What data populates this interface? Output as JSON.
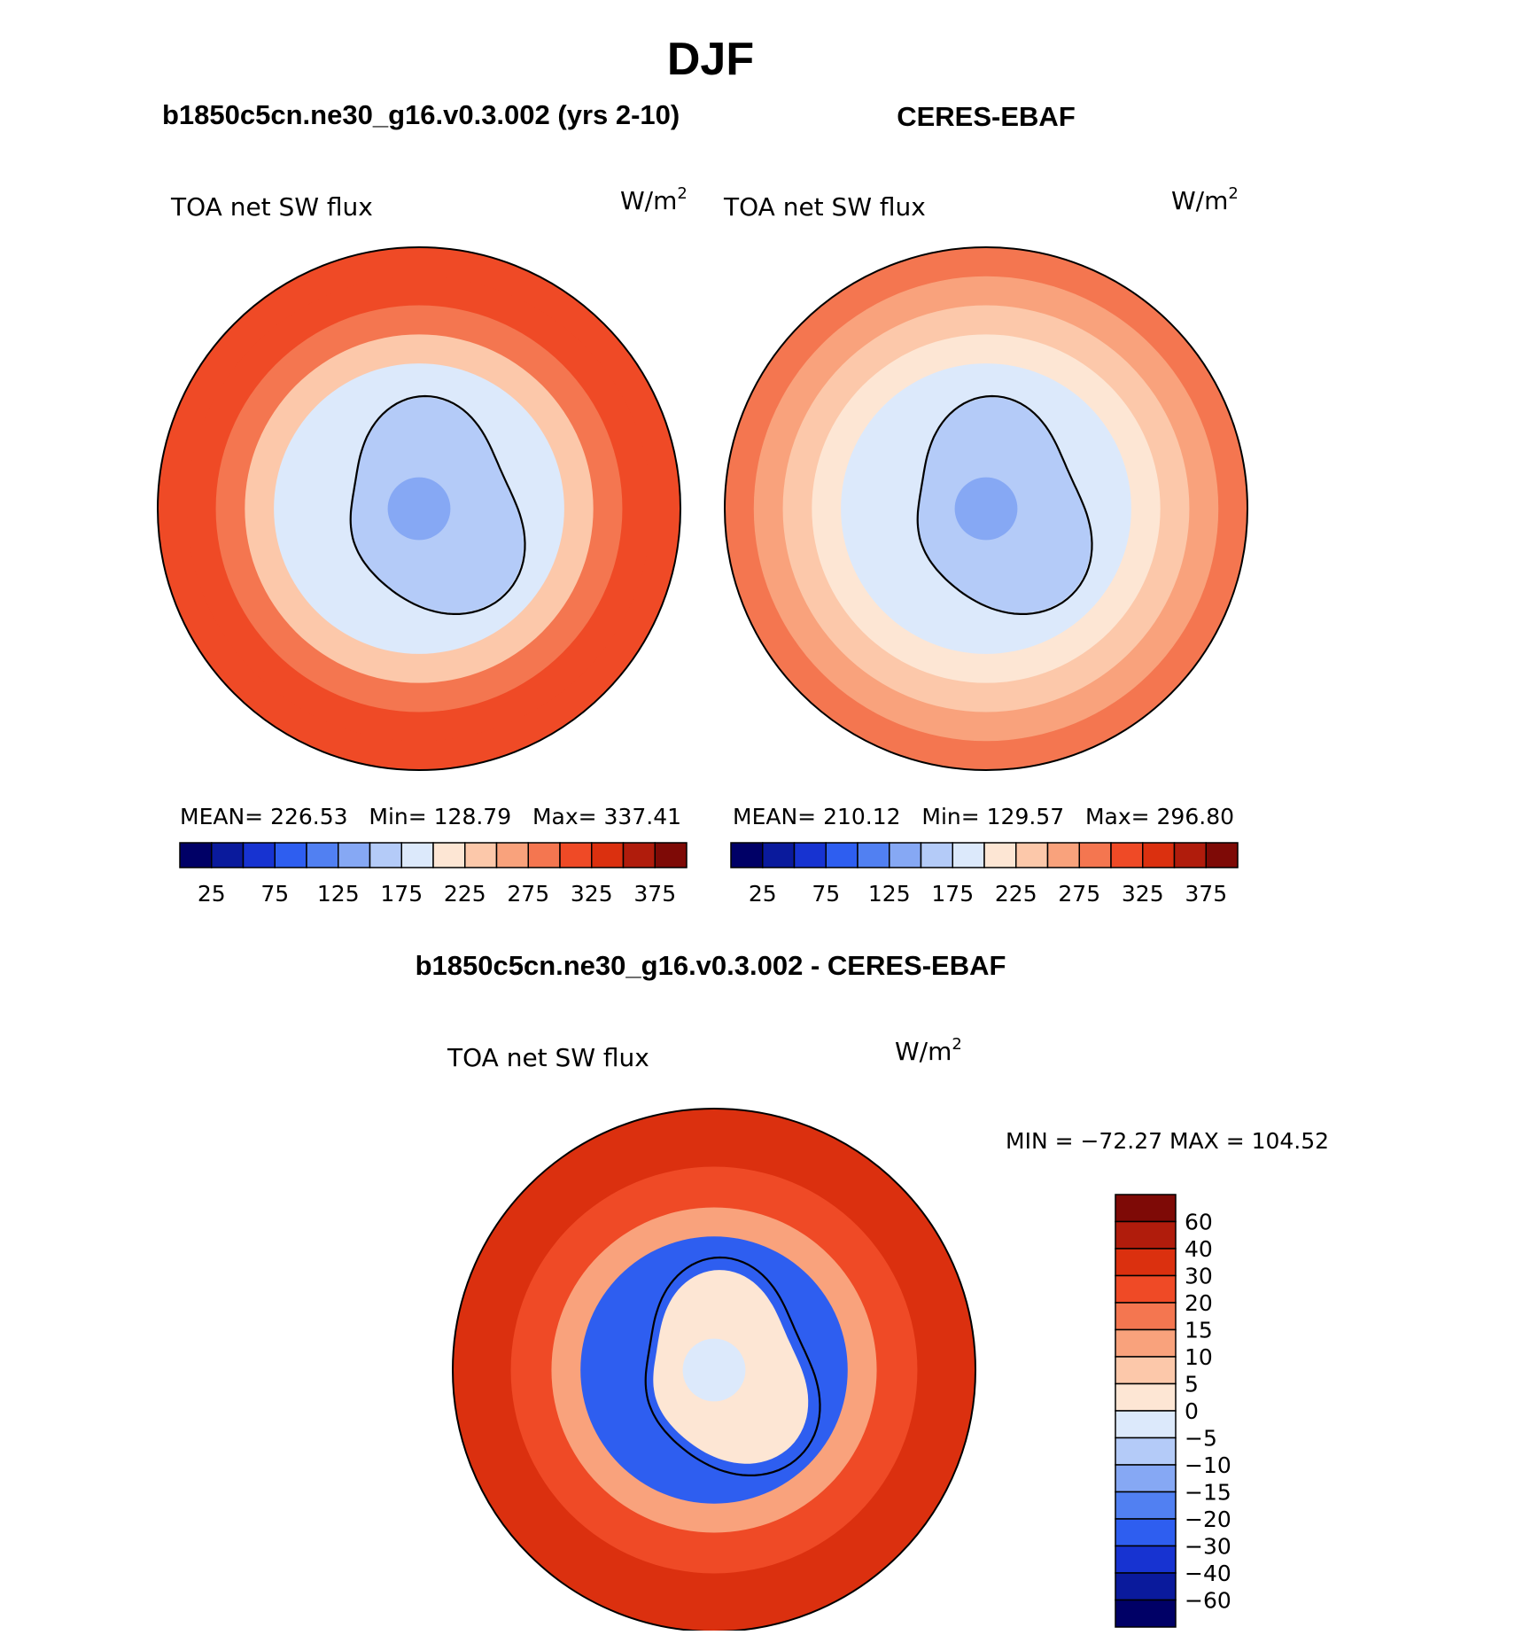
{
  "page": {
    "season": "DJF"
  },
  "panels": [
    {
      "title": "b1850c5cn.ne30_g16.v0.3.002 (yrs 2-10)",
      "left_label": "TOA net SW flux",
      "right_label_base": "W/m",
      "right_label_sup": "2",
      "stats": "MEAN= 226.53   Min= 128.79   Max= 337.41"
    },
    {
      "title": "CERES-EBAF",
      "left_label": "TOA net SW flux",
      "right_label_base": "W/m",
      "right_label_sup": "2",
      "stats": "MEAN= 210.12   Min= 129.57   Max= 296.80"
    },
    {
      "title": "b1850c5cn.ne30_g16.v0.3.002 - CERES-EBAF",
      "left_label": "TOA net SW flux",
      "right_label_base": "W/m",
      "right_label_sup": "2",
      "stats": "MIN = −72.27 MAX = 104.52"
    }
  ],
  "chart_data": [
    {
      "type": "heatmap",
      "projection": "south-polar-stereographic",
      "title": "b1850c5cn.ne30_g16.v0.3.002 (yrs 2-10)",
      "variable": "TOA net SW flux",
      "units": "W/m2",
      "mean": 226.53,
      "min": 128.79,
      "max": 337.41,
      "field_rings": [
        {
          "lat": -90,
          "value": 145
        },
        {
          "lat": -70,
          "value": 160
        },
        {
          "lat": -65,
          "value": 190
        },
        {
          "lat": -60,
          "value": 235
        },
        {
          "lat": -55,
          "value": 275
        },
        {
          "lat": -50,
          "value": 305
        },
        {
          "lat": -45,
          "value": 320
        }
      ],
      "colorbar": {
        "orientation": "horizontal",
        "levels": [
          25,
          50,
          75,
          100,
          125,
          150,
          175,
          200,
          225,
          250,
          275,
          300,
          325,
          350,
          375
        ],
        "tick_labels": [
          "25",
          "75",
          "125",
          "175",
          "225",
          "275",
          "325",
          "375"
        ],
        "colors": [
          "#000066",
          "#0a1a9c",
          "#1733d1",
          "#2e5ef0",
          "#5180f2",
          "#86a8f4",
          "#b4cbf8",
          "#dce9fb",
          "#fde6d4",
          "#fcc8aa",
          "#f9a27c",
          "#f47650",
          "#ef4a26",
          "#db300f",
          "#b01c0c",
          "#7e0a06"
        ]
      }
    },
    {
      "type": "heatmap",
      "projection": "south-polar-stereographic",
      "title": "CERES-EBAF",
      "variable": "TOA net SW flux",
      "units": "W/m2",
      "mean": 210.12,
      "min": 129.57,
      "max": 296.8,
      "field_rings": [
        {
          "lat": -90,
          "value": 140
        },
        {
          "lat": -70,
          "value": 155
        },
        {
          "lat": -65,
          "value": 190
        },
        {
          "lat": -60,
          "value": 215
        },
        {
          "lat": -55,
          "value": 240
        },
        {
          "lat": -50,
          "value": 262
        },
        {
          "lat": -45,
          "value": 282
        }
      ],
      "colorbar": {
        "orientation": "horizontal",
        "levels": [
          25,
          50,
          75,
          100,
          125,
          150,
          175,
          200,
          225,
          250,
          275,
          300,
          325,
          350,
          375
        ],
        "tick_labels": [
          "25",
          "75",
          "125",
          "175",
          "225",
          "275",
          "325",
          "375"
        ],
        "colors": [
          "#000066",
          "#0a1a9c",
          "#1733d1",
          "#2e5ef0",
          "#5180f2",
          "#86a8f4",
          "#b4cbf8",
          "#dce9fb",
          "#fde6d4",
          "#fcc8aa",
          "#f9a27c",
          "#f47650",
          "#ef4a26",
          "#db300f",
          "#b01c0c",
          "#7e0a06"
        ]
      }
    },
    {
      "type": "heatmap",
      "projection": "south-polar-stereographic",
      "title": "b1850c5cn.ne30_g16.v0.3.002 - CERES-EBAF",
      "variable": "TOA net SW flux",
      "units": "W/m2",
      "min": -72.27,
      "max": 104.52,
      "field_rings": [
        {
          "lat": -90,
          "value": -3
        },
        {
          "lat": -72,
          "value": 3
        },
        {
          "lat": -67,
          "value": -25
        },
        {
          "lat": -62,
          "value": 12
        },
        {
          "lat": -55,
          "value": 25
        },
        {
          "lat": -45,
          "value": 35
        }
      ],
      "colorbar": {
        "orientation": "vertical",
        "levels": [
          -60,
          -40,
          -30,
          -20,
          -15,
          -10,
          -5,
          0,
          5,
          10,
          15,
          20,
          30,
          40,
          60
        ],
        "tick_labels": [
          "60",
          "40",
          "30",
          "20",
          "15",
          "10",
          "5",
          "0",
          "−5",
          "−10",
          "−15",
          "−20",
          "−30",
          "−40",
          "−60"
        ],
        "colors_top_to_bottom": [
          "#7e0a06",
          "#b01c0c",
          "#db300f",
          "#ef4a26",
          "#f47650",
          "#f9a27c",
          "#fcc8aa",
          "#fde6d4",
          "#dce9fb",
          "#b4cbf8",
          "#86a8f4",
          "#5180f2",
          "#2e5ef0",
          "#1733d1",
          "#0a1a9c",
          "#000066"
        ]
      }
    }
  ]
}
